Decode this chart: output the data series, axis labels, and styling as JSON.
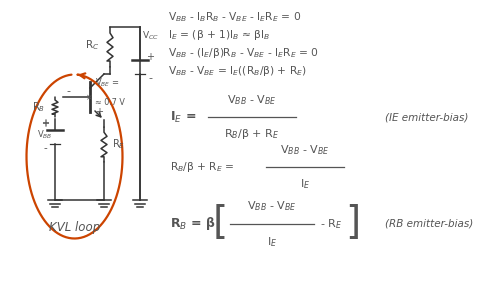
{
  "background_color": "#ffffff",
  "formulas_top": [
    "V$_{BB}$ - I$_{B}$R$_{B}$ - V$_{BE}$ - I$_{E}$R$_{E}$ = 0",
    "I$_{E}$ = (β + 1)I$_{B}$ ≈ βI$_{B}$",
    "V$_{BB}$ - (I$_{E}$/β)R$_{B}$ - V$_{BE}$ - I$_{E}$R$_{E}$ = 0",
    "V$_{BB}$ - V$_{BE}$ = I$_{E}$((R$_{B}$/β) + R$_{E}$)"
  ],
  "formula_ie_label": "I$_{E}$ =",
  "formula_ie_num": "V$_{BB}$ - V$_{BE}$",
  "formula_ie_den": "R$_{B}$/β + R$_{E}$",
  "formula_ie_tag": "(IE emitter-bias)",
  "formula_rb_lhs": "R$_{B}$/β + R$_{E}$ =",
  "formula_rb_num": "V$_{BB}$ - V$_{BE}$",
  "formula_rb_den": "I$_{E}$",
  "formula_rbb_label": "R$_{B}$ = β",
  "formula_rbb_num": "V$_{BB}$ - V$_{BE}$",
  "formula_rbb_den": "I$_{E}$",
  "formula_rbb_re": "- R$_{E}$",
  "formula_rbb_tag": "(RB emitter-bias)",
  "kvl_label": "KVL loop",
  "text_color": "#555555",
  "orange_color": "#cc4400",
  "circuit_color": "#333333",
  "formula_text_size": 8.0,
  "tag_text_size": 7.5
}
